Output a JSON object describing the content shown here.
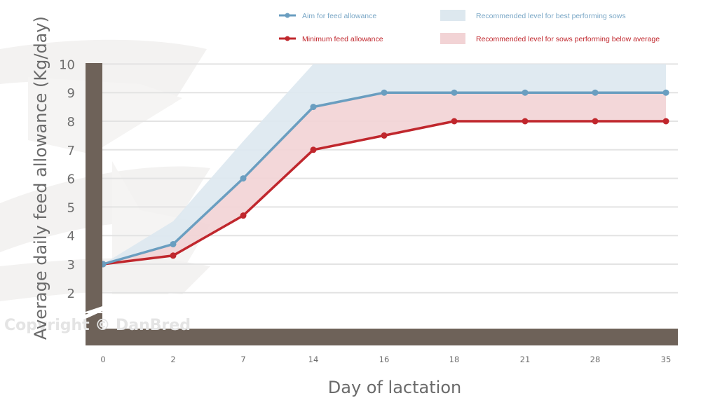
{
  "colors": {
    "aim_line": "#6a9ec0",
    "min_line": "#c0272d",
    "best_band": "#dde8ef",
    "below_band": "#f2d3d5",
    "axis_bar": "#6e6259",
    "grid": "#e3e3e3",
    "aim_text": "#7aa7c6",
    "min_text": "#c0272d"
  },
  "watermark": "Copyright © DanBred",
  "chart_data": {
    "type": "line",
    "title": "",
    "xlabel": "Day of lactation",
    "ylabel": "Average daily feed allowance (Kg/day)",
    "x_categories": [
      "0",
      "2",
      "7",
      "14",
      "16",
      "18",
      "21",
      "28",
      "35"
    ],
    "y_ticks": [
      "2",
      "3",
      "4",
      "5",
      "6",
      "7",
      "8",
      "9",
      "10"
    ],
    "ylim": [
      1,
      10
    ],
    "grid": true,
    "legend_position": "top-right",
    "legend": [
      {
        "label": "Aim for feed allowance",
        "kind": "line",
        "series": "aim"
      },
      {
        "label": "Minimum feed allowance",
        "kind": "line",
        "series": "min"
      },
      {
        "label": "Recommended level for best performing sows",
        "kind": "band",
        "series": "best"
      },
      {
        "label": "Recommended level for sows performing below average",
        "kind": "band",
        "series": "below"
      }
    ],
    "series": [
      {
        "name": "Aim for feed allowance",
        "key": "aim",
        "values": [
          3,
          3.7,
          6,
          8.5,
          9,
          9,
          9,
          9,
          9
        ]
      },
      {
        "name": "Minimum feed allowance",
        "key": "min",
        "values": [
          3,
          3.3,
          4.7,
          7,
          7.5,
          8,
          8,
          8,
          8
        ]
      }
    ],
    "bands": [
      {
        "name": "Recommended level for best performing sows",
        "key": "best",
        "lower": "aim",
        "upper": [
          3,
          4.5,
          7.3,
          10,
          10,
          10,
          10,
          10,
          10
        ]
      },
      {
        "name": "Recommended level for sows performing below average",
        "key": "below",
        "lower": "min",
        "upper": "aim"
      }
    ]
  }
}
